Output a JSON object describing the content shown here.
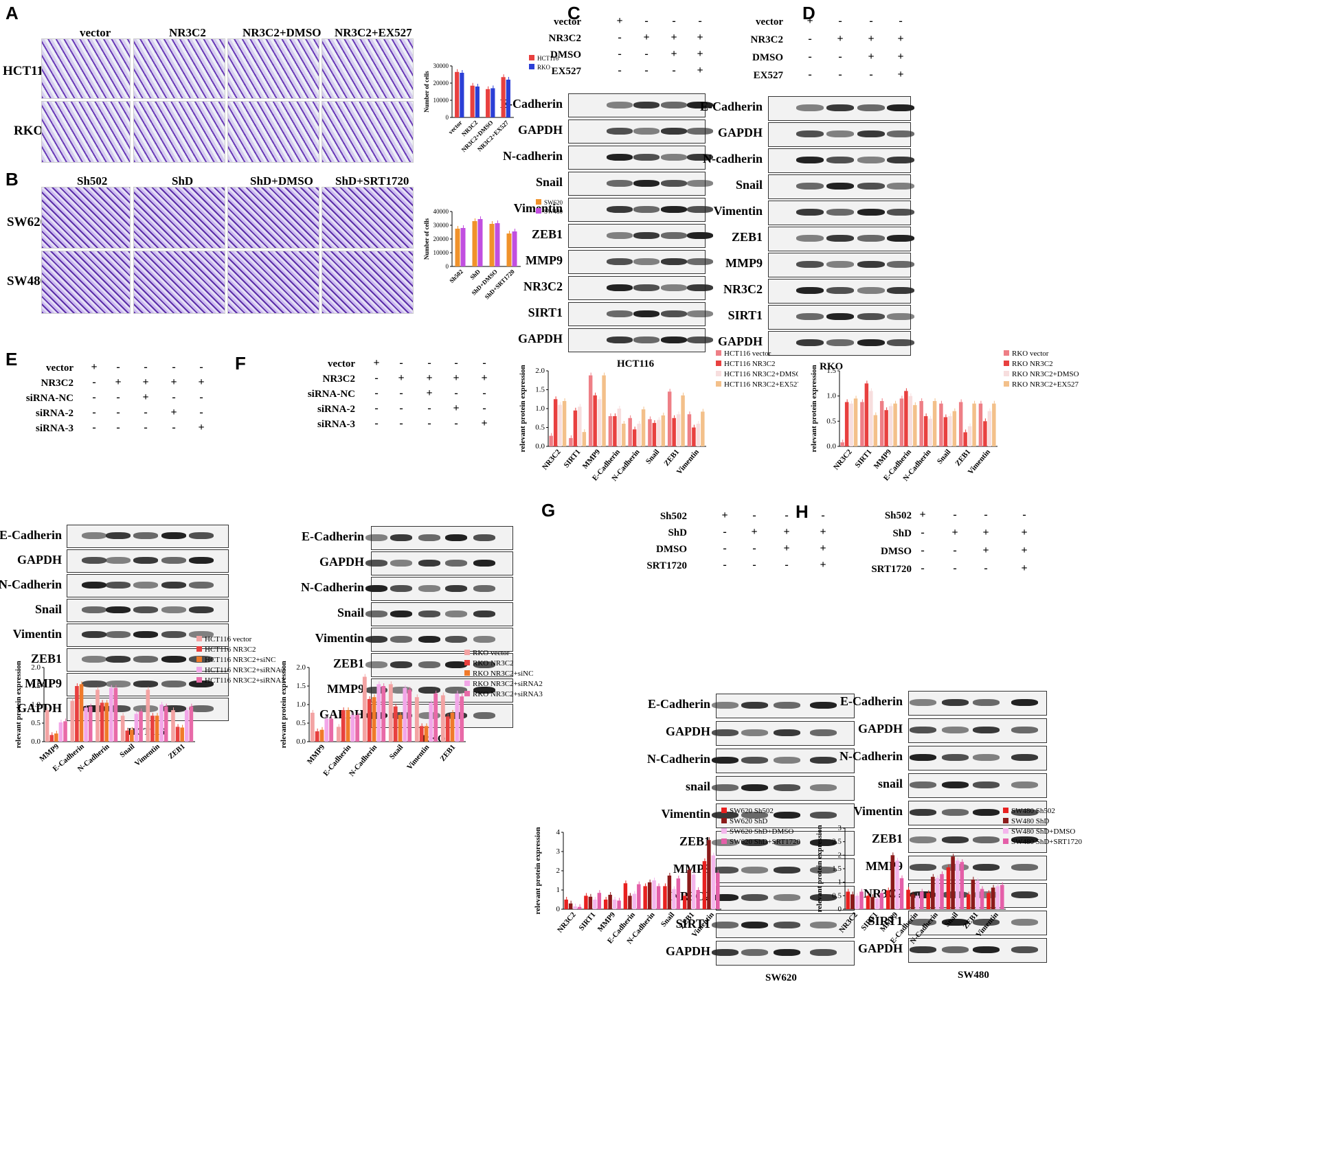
{
  "panels": {
    "A": {
      "letter": "A",
      "cols": [
        "vector",
        "NR3C2",
        "NR3C2+DMSO",
        "NR3C2+EX527"
      ],
      "rows": [
        "HCT116",
        "RKO"
      ]
    },
    "B": {
      "letter": "B",
      "cols": [
        "Sh502",
        "ShD",
        "ShD+DMSO",
        "ShD+SRT1720"
      ],
      "rows": [
        "SW620",
        "SW480"
      ]
    },
    "C": {
      "letter": "C",
      "conditions": [
        "vector",
        "NR3C2",
        "DMSO",
        "EX527"
      ],
      "signs": [
        [
          "+",
          "-",
          "-",
          "-"
        ],
        [
          "-",
          "+",
          "+",
          "+"
        ],
        [
          "-",
          "-",
          "+",
          "+"
        ],
        [
          "-",
          "-",
          "-",
          "+"
        ]
      ],
      "blots": [
        "E-Cadherin",
        "GAPDH",
        "N-cadherin",
        "Snail",
        "Vimentin",
        "ZEB1",
        "MMP9",
        "NR3C2",
        "SIRT1",
        "GAPDH"
      ],
      "caption": "HCT116"
    },
    "D": {
      "letter": "D",
      "conditions": [
        "vector",
        "NR3C2",
        "DMSO",
        "EX527"
      ],
      "signs": [
        [
          "+",
          "-",
          "-",
          "-"
        ],
        [
          "-",
          "+",
          "+",
          "+"
        ],
        [
          "-",
          "-",
          "+",
          "+"
        ],
        [
          "-",
          "-",
          "-",
          "+"
        ]
      ],
      "blots": [
        "E-Cadherin",
        "GAPDH",
        "N-cadherin",
        "Snail",
        "Vimentin",
        "ZEB1",
        "MMP9",
        "NR3C2",
        "SIRT1",
        "GAPDH"
      ],
      "caption": "RKO"
    },
    "E": {
      "letter": "E",
      "conditions": [
        "vector",
        "NR3C2",
        "siRNA-NC",
        "siRNA-2",
        "siRNA-3"
      ],
      "signs": [
        [
          "+",
          "-",
          "-",
          "-",
          "-"
        ],
        [
          "-",
          "+",
          "+",
          "+",
          "+"
        ],
        [
          "-",
          "-",
          "+",
          "-",
          "-"
        ],
        [
          "-",
          "-",
          "-",
          "+",
          "-"
        ],
        [
          "-",
          "-",
          "-",
          "-",
          "+"
        ]
      ],
      "blots": [
        "E-Cadherin",
        "GAPDH",
        "N-Cadherin",
        "Snail",
        "Vimentin",
        "ZEB1",
        "MMP9",
        "GAPDH"
      ],
      "caption": "HCT116"
    },
    "F": {
      "letter": "F",
      "conditions": [
        "vector",
        "NR3C2",
        "siRNA-NC",
        "siRNA-2",
        "siRNA-3"
      ],
      "signs": [
        [
          "+",
          "-",
          "-",
          "-",
          "-"
        ],
        [
          "-",
          "+",
          "+",
          "+",
          "+"
        ],
        [
          "-",
          "-",
          "+",
          "-",
          "-"
        ],
        [
          "-",
          "-",
          "-",
          "+",
          "-"
        ],
        [
          "-",
          "-",
          "-",
          "-",
          "+"
        ]
      ],
      "blots": [
        "E-Cadherin",
        "GAPDH",
        "N-Cadherin",
        "Snail",
        "Vimentin",
        "ZEB1",
        "MMP9",
        "GAPDH"
      ],
      "caption": "RKO"
    },
    "G": {
      "letter": "G",
      "conditions": [
        "Sh502",
        "ShD",
        "DMSO",
        "SRT1720"
      ],
      "signs": [
        [
          "+",
          "-",
          "-",
          "-"
        ],
        [
          "-",
          "+",
          "+",
          "+"
        ],
        [
          "-",
          "-",
          "+",
          "+"
        ],
        [
          "-",
          "-",
          "-",
          "+"
        ]
      ],
      "blots": [
        "E-Cadherin",
        "GAPDH",
        "N-Cadherin",
        "snail",
        "Vimentin",
        "ZEB1",
        "MMP9",
        "NR3C2",
        "SIRT1",
        "GAPDH"
      ],
      "caption": "SW620"
    },
    "H": {
      "letter": "H",
      "conditions": [
        "Sh502",
        "ShD",
        "DMSO",
        "SRT1720"
      ],
      "signs": [
        [
          "+",
          "-",
          "-",
          "-"
        ],
        [
          "-",
          "+",
          "+",
          "+"
        ],
        [
          "-",
          "-",
          "+",
          "+"
        ],
        [
          "-",
          "-",
          "-",
          "+"
        ]
      ],
      "blots": [
        "E-Cadherin",
        "GAPDH",
        "N-Cadherin",
        "snail",
        "Vimentin",
        "ZEB1",
        "MMP9",
        "NR3C2",
        "SIRT1",
        "GAPDH"
      ],
      "caption": "SW480"
    }
  },
  "chart_data": [
    {
      "id": "A",
      "type": "bar",
      "categories": [
        "vector",
        "NR3C2",
        "NR3C2+DMSO",
        "NR3C2+EX527"
      ],
      "ylabel": "Number of cells",
      "ylim": [
        0,
        30000
      ],
      "yticks": [
        0,
        10000,
        20000,
        30000
      ],
      "series": [
        {
          "name": "HCT116",
          "color": "#e8403f",
          "values": [
            26500,
            18500,
            16500,
            23500
          ]
        },
        {
          "name": "RKO",
          "color": "#2b3fd6",
          "values": [
            26000,
            18000,
            17000,
            22000
          ]
        }
      ]
    },
    {
      "id": "B",
      "type": "bar",
      "categories": [
        "Sh502",
        "ShD",
        "ShD+DMSO",
        "ShD+SRT1720"
      ],
      "ylabel": "Number of cells",
      "ylim": [
        0,
        40000
      ],
      "yticks": [
        0,
        10000,
        20000,
        30000,
        40000
      ],
      "series": [
        {
          "name": "SW620",
          "color": "#f0922b",
          "values": [
            27500,
            33000,
            31000,
            24000
          ]
        },
        {
          "name": "SW480",
          "color": "#c14fe0",
          "values": [
            28000,
            34500,
            31500,
            25500
          ]
        }
      ]
    },
    {
      "id": "C",
      "type": "bar",
      "categories": [
        "NR3C2",
        "SIRT1",
        "MMP9",
        "E-Cadherin",
        "N-Cadherin",
        "Snail",
        "ZEB1",
        "Vimentin"
      ],
      "ylabel": "relevant protein expression",
      "ylim": [
        0,
        2.0
      ],
      "yticks": [
        0,
        0.5,
        1.0,
        1.5,
        2.0
      ],
      "series": [
        {
          "name": "HCT116 vector",
          "color": "#ee7f86",
          "values": [
            0.28,
            0.22,
            1.88,
            0.8,
            0.75,
            0.72,
            1.45,
            0.85
          ]
        },
        {
          "name": "HCT116 NR3C2",
          "color": "#e8403f",
          "values": [
            1.25,
            0.95,
            1.35,
            0.8,
            0.45,
            0.62,
            0.75,
            0.5
          ]
        },
        {
          "name": "HCT116 NR3C2+DMSO",
          "color": "#f7dede",
          "values": [
            1.1,
            1.05,
            1.25,
            1.0,
            0.6,
            0.7,
            0.85,
            0.6
          ]
        },
        {
          "name": "HCT116 NR3C2+EX527",
          "color": "#f3c08a",
          "values": [
            1.2,
            0.38,
            1.88,
            0.6,
            0.98,
            0.82,
            1.35,
            0.92
          ]
        }
      ]
    },
    {
      "id": "D",
      "type": "bar",
      "categories": [
        "NR3C2",
        "SIRT1",
        "MMP9",
        "E-Cadherin",
        "N-Cadherin",
        "Snail",
        "ZEB1",
        "Vimentin"
      ],
      "ylabel": "relevant protein expression",
      "ylim": [
        0,
        1.5
      ],
      "yticks": [
        0,
        0.5,
        1.0,
        1.5
      ],
      "series": [
        {
          "name": "RKO vector",
          "color": "#ee7f86",
          "values": [
            0.08,
            0.88,
            0.9,
            0.95,
            0.9,
            0.85,
            0.88,
            0.85
          ]
        },
        {
          "name": "RKO NR3C2",
          "color": "#e8403f",
          "values": [
            0.88,
            1.25,
            0.72,
            1.1,
            0.6,
            0.58,
            0.28,
            0.5
          ]
        },
        {
          "name": "RKO NR3C2+DMSO",
          "color": "#f7dede",
          "values": [
            0.85,
            1.1,
            0.8,
            1.0,
            0.55,
            0.6,
            0.4,
            0.7
          ]
        },
        {
          "name": "RKO NR3C2+EX527",
          "color": "#f3c08a",
          "values": [
            0.95,
            0.62,
            0.85,
            0.82,
            0.9,
            0.7,
            0.85,
            0.85
          ]
        }
      ]
    },
    {
      "id": "E",
      "type": "bar",
      "categories": [
        "MMP9",
        "E-Cadherin",
        "N-Cadherin",
        "Snail",
        "Vimentin",
        "ZEB1"
      ],
      "ylabel": "relevant protein expression",
      "ylim": [
        0,
        2.0
      ],
      "yticks": [
        0,
        0.5,
        1.0,
        1.5,
        2.0
      ],
      "series": [
        {
          "name": "HCT116 vector",
          "color": "#f3a3a3",
          "values": [
            0.85,
            1.1,
            1.4,
            0.7,
            1.4,
            0.85
          ]
        },
        {
          "name": "HCT116 NR3C2",
          "color": "#e8403f",
          "values": [
            0.18,
            1.5,
            1.05,
            0.3,
            0.7,
            0.4
          ]
        },
        {
          "name": "HCT116 NR3C2+siNC",
          "color": "#f07a2a",
          "values": [
            0.22,
            1.55,
            1.05,
            0.32,
            0.7,
            0.38
          ]
        },
        {
          "name": "HCT116 NR3C2+siRNA2",
          "color": "#f2a6e8",
          "values": [
            0.52,
            0.92,
            1.45,
            0.75,
            1.0,
            0.85
          ]
        },
        {
          "name": "HCT116 NR3C2+siRNA3",
          "color": "#e86aa8",
          "values": [
            0.55,
            0.95,
            1.45,
            0.82,
            0.95,
            0.95
          ]
        }
      ]
    },
    {
      "id": "F",
      "type": "bar",
      "categories": [
        "MMP9",
        "E-Cadherin",
        "N-Cadherin",
        "Snail",
        "Vimentin",
        "ZEB1"
      ],
      "ylabel": "relevant protein expression",
      "ylim": [
        0,
        2.0
      ],
      "yticks": [
        0,
        0.5,
        1.0,
        1.5,
        2.0
      ],
      "series": [
        {
          "name": "RKO vector",
          "color": "#f3a3a3",
          "values": [
            0.78,
            0.4,
            1.75,
            1.55,
            1.2,
            1.25
          ]
        },
        {
          "name": "RKO NR3C2",
          "color": "#e8403f",
          "values": [
            0.28,
            0.85,
            1.15,
            0.95,
            0.42,
            0.68
          ]
        },
        {
          "name": "RKO NR3C2+siNC",
          "color": "#f07a2a",
          "values": [
            0.32,
            0.85,
            1.2,
            0.72,
            0.42,
            0.78
          ]
        },
        {
          "name": "RKO NR3C2+siRNA2",
          "color": "#f2a6e8",
          "values": [
            0.62,
            0.72,
            1.55,
            1.45,
            1.05,
            1.3
          ]
        },
        {
          "name": "RKO NR3C2+siRNA3",
          "color": "#e86aa8",
          "values": [
            0.62,
            0.72,
            1.5,
            1.4,
            1.3,
            1.22
          ]
        }
      ]
    },
    {
      "id": "G",
      "type": "bar",
      "categories": [
        "NR3C2",
        "SIRT1",
        "MMP9",
        "E-Cadherin",
        "N-Cadherin",
        "Snail",
        "ZEB1",
        "Vimentin"
      ],
      "ylabel": "relevant protein expression",
      "ylim": [
        0,
        4
      ],
      "yticks": [
        0,
        1,
        2,
        3,
        4
      ],
      "series": [
        {
          "name": "SW620 Sh502",
          "color": "#e8201f",
          "values": [
            0.5,
            0.7,
            0.5,
            1.35,
            1.2,
            1.2,
            0.7,
            2.5
          ]
        },
        {
          "name": "SW620 ShD",
          "color": "#8b1a1a",
          "values": [
            0.3,
            0.65,
            0.75,
            0.7,
            1.4,
            1.75,
            2.05,
            3.6
          ]
        },
        {
          "name": "SW620 ShD+DMSO",
          "color": "#f4b6ec",
          "values": [
            0.15,
            0.5,
            0.5,
            0.8,
            1.5,
            1.05,
            1.8,
            2.8
          ]
        },
        {
          "name": "SW620 ShD+SRT1720",
          "color": "#e45fa8",
          "values": [
            0.12,
            0.85,
            0.45,
            1.3,
            1.2,
            1.6,
            1.0,
            1.9
          ]
        }
      ]
    },
    {
      "id": "H",
      "type": "bar",
      "categories": [
        "NR3C2",
        "SIRT1",
        "MMP9",
        "E-Cadherin",
        "N-Cadherin",
        "Snail",
        "ZEB1",
        "Vimentin"
      ],
      "ylabel": "relevant protein expression",
      "ylim": [
        0,
        3.0
      ],
      "yticks": [
        0,
        0.5,
        1.0,
        1.5,
        2.0,
        2.5,
        3.0
      ],
      "series": [
        {
          "name": "SW480 Sh502",
          "color": "#e8201f",
          "values": [
            0.65,
            0.5,
            0.7,
            0.72,
            0.6,
            1.55,
            0.55,
            0.6
          ]
        },
        {
          "name": "SW480 ShD",
          "color": "#8b1a1a",
          "values": [
            0.55,
            0.45,
            2.0,
            0.55,
            1.2,
            1.95,
            1.1,
            0.8
          ]
        },
        {
          "name": "SW480 ShD+DMSO",
          "color": "#f4b6ec",
          "values": [
            0.5,
            0.4,
            1.8,
            0.5,
            1.15,
            1.8,
            1.05,
            0.85
          ]
        },
        {
          "name": "SW480 ShD+SRT1720",
          "color": "#e45fa8",
          "values": [
            0.65,
            0.6,
            1.15,
            0.65,
            1.3,
            1.75,
            0.75,
            0.9
          ]
        }
      ]
    }
  ]
}
